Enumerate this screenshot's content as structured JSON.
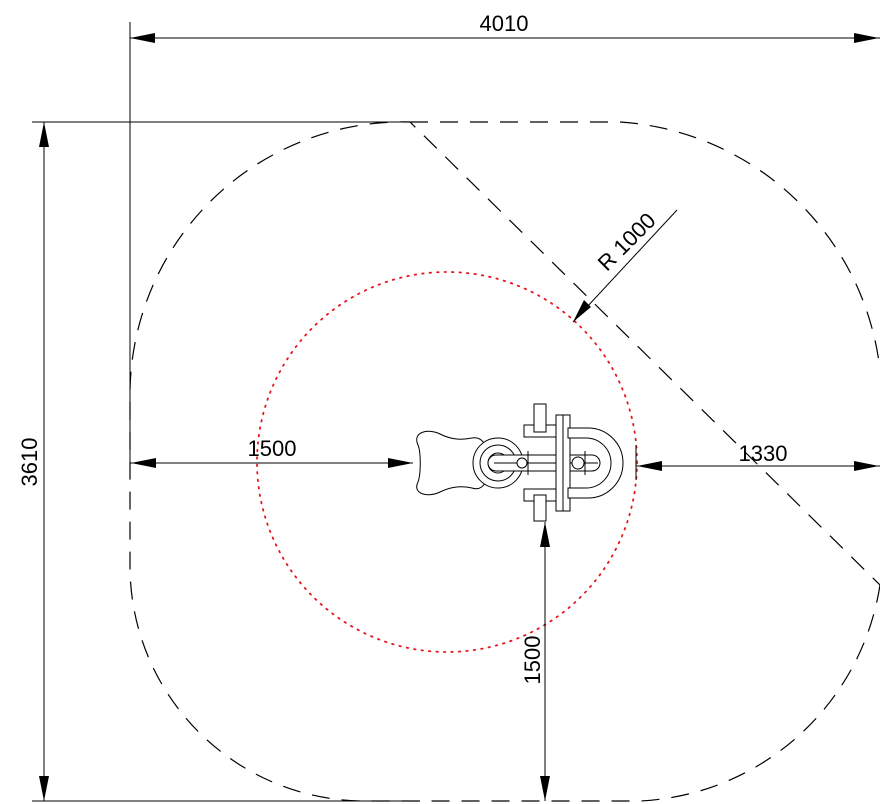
{
  "dimensions": {
    "overall_width": "4010",
    "overall_depth": "3610",
    "left_clearance": "1500",
    "right_clearance": "1330",
    "bottom_clearance": "1500",
    "radius": "R 1000"
  },
  "colors": {
    "line": "#000000",
    "fall_zone_circle": "#e8141c",
    "background": "#ffffff"
  }
}
